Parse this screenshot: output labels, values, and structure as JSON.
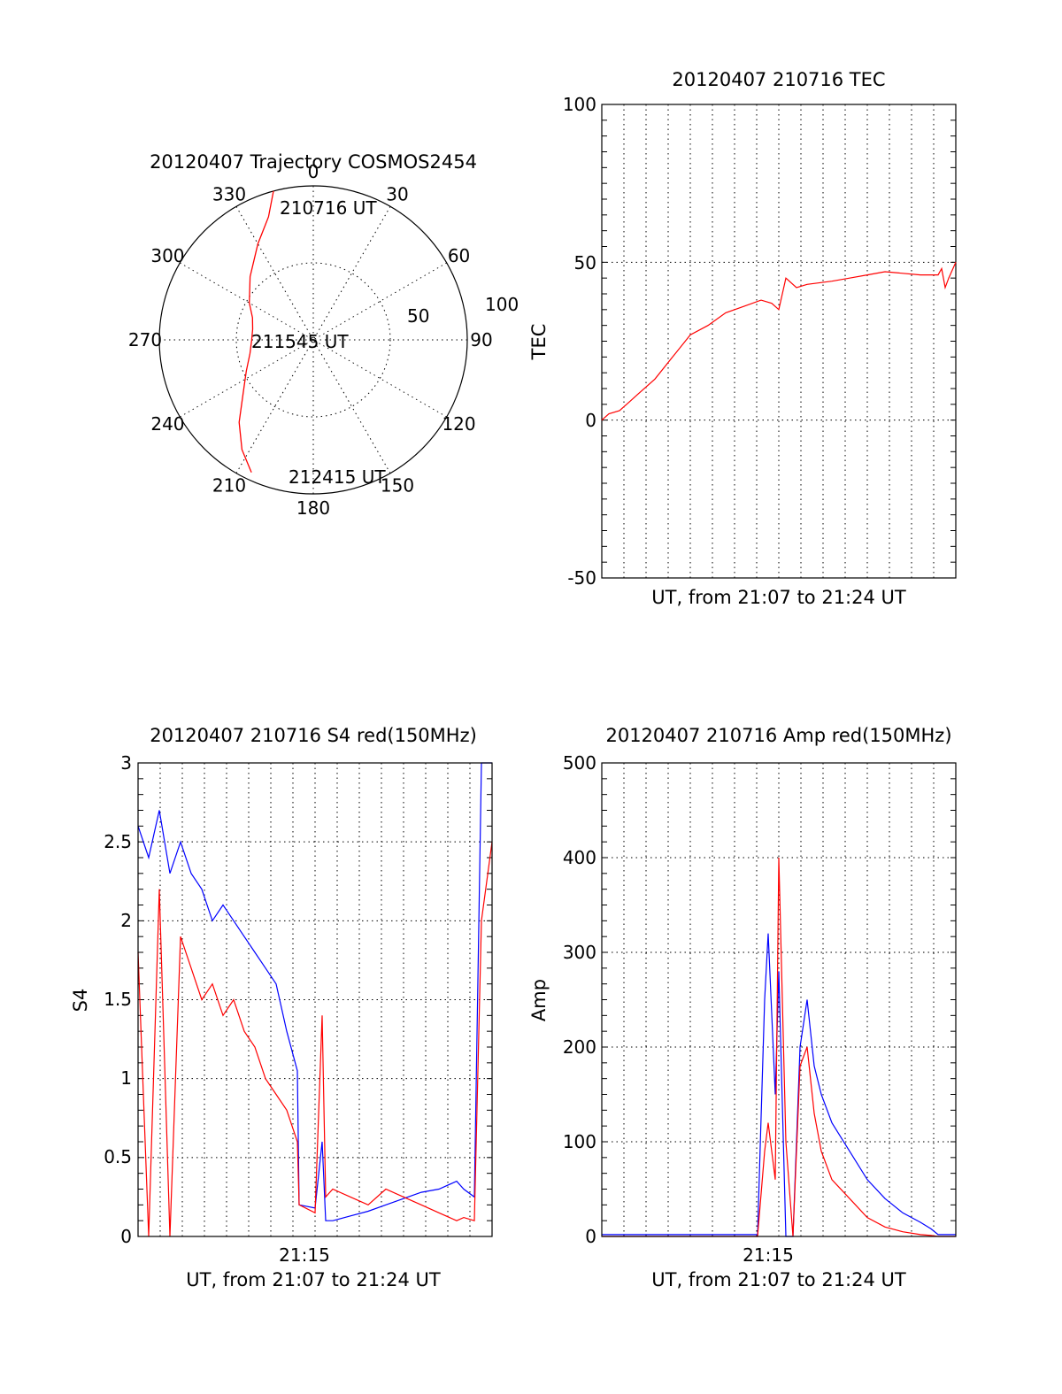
{
  "colors": {
    "red": "#ff0000",
    "blue": "#0000ff",
    "axis": "#000000",
    "background": "#ffffff"
  },
  "chart_data": [
    {
      "id": "trajectory",
      "type": "polar",
      "title": "20120407 Trajectory COSMOS2454",
      "angle_labels": [
        "0",
        "30",
        "60",
        "90",
        "120",
        "150",
        "180",
        "210",
        "240",
        "270",
        "300",
        "330"
      ],
      "radius_labels": [
        "50",
        "100"
      ],
      "rlim": [
        0,
        100
      ],
      "series": [
        {
          "color": "#ff0000",
          "points": [
            [
              345,
              100
            ],
            [
              340,
              85
            ],
            [
              330,
              72
            ],
            [
              315,
              58
            ],
            [
              300,
              48
            ],
            [
              290,
              42
            ],
            [
              280,
              40
            ],
            [
              270,
              40
            ],
            [
              258,
              42
            ],
            [
              245,
              48
            ],
            [
              232,
              58
            ],
            [
              222,
              72
            ],
            [
              213,
              85
            ],
            [
              205,
              95
            ]
          ]
        }
      ],
      "annotations": [
        "210716 UT",
        "211545 UT",
        "212415 UT"
      ]
    },
    {
      "id": "tec",
      "type": "line",
      "title": "20120407 210716 TEC",
      "xlabel": "UT, from 21:07 to 21:24 UT",
      "ylabel": "TEC",
      "ylim": [
        -50,
        100
      ],
      "yticks": [
        "-50",
        "0",
        "50",
        "100"
      ],
      "series": [
        {
          "color": "#ff0000",
          "x": [
            0,
            0.02,
            0.05,
            0.08,
            0.1,
            0.15,
            0.2,
            0.25,
            0.3,
            0.35,
            0.4,
            0.45,
            0.48,
            0.5,
            0.52,
            0.55,
            0.58,
            0.65,
            0.7,
            0.75,
            0.8,
            0.9,
            0.95,
            0.96,
            0.97,
            0.98,
            1.0
          ],
          "y": [
            0,
            2,
            3,
            6,
            8,
            13,
            20,
            27,
            30,
            34,
            36,
            38,
            37,
            35,
            45,
            42,
            43,
            44,
            45,
            46,
            47,
            46,
            46,
            48,
            42,
            45,
            50
          ]
        }
      ]
    },
    {
      "id": "s4",
      "type": "line",
      "title": "20120407 210716 S4 red(150MHz)",
      "xlabel": "UT, from 21:07 to 21:24 UT",
      "xtick": "21:15",
      "ylabel": "S4",
      "ylim": [
        0,
        3
      ],
      "yticks": [
        "0",
        "0.5",
        "1",
        "1.5",
        "2",
        "2.5",
        "3"
      ],
      "series": [
        {
          "color": "#0000ff",
          "x": [
            0.0,
            0.03,
            0.06,
            0.09,
            0.12,
            0.15,
            0.18,
            0.21,
            0.24,
            0.27,
            0.3,
            0.33,
            0.36,
            0.39,
            0.42,
            0.45,
            0.455,
            0.5,
            0.52,
            0.53,
            0.55,
            0.6,
            0.65,
            0.7,
            0.75,
            0.8,
            0.85,
            0.9,
            0.92,
            0.95,
            0.97,
            1.0
          ],
          "y": [
            2.6,
            2.4,
            2.7,
            2.3,
            2.5,
            2.3,
            2.2,
            2.0,
            2.1,
            2.0,
            1.9,
            1.8,
            1.7,
            1.6,
            1.3,
            1.05,
            0.2,
            0.18,
            0.6,
            0.1,
            0.1,
            0.13,
            0.16,
            0.2,
            0.24,
            0.28,
            0.3,
            0.35,
            0.3,
            0.25,
            3.0,
            3.0
          ]
        },
        {
          "color": "#ff0000",
          "x": [
            0.0,
            0.03,
            0.06,
            0.09,
            0.12,
            0.15,
            0.18,
            0.21,
            0.24,
            0.27,
            0.3,
            0.33,
            0.36,
            0.39,
            0.42,
            0.45,
            0.455,
            0.5,
            0.52,
            0.53,
            0.55,
            0.6,
            0.65,
            0.7,
            0.75,
            0.8,
            0.85,
            0.9,
            0.92,
            0.95,
            0.97,
            1.0
          ],
          "y": [
            1.8,
            0.0,
            2.2,
            0.0,
            1.9,
            1.7,
            1.5,
            1.6,
            1.4,
            1.5,
            1.3,
            1.2,
            1.0,
            0.9,
            0.8,
            0.6,
            0.2,
            0.15,
            1.4,
            0.25,
            0.3,
            0.25,
            0.2,
            0.3,
            0.25,
            0.2,
            0.15,
            0.1,
            0.12,
            0.1,
            2.0,
            2.5
          ]
        }
      ]
    },
    {
      "id": "amp",
      "type": "line",
      "title": "20120407 210716 Amp red(150MHz)",
      "xlabel": "UT, from 21:07 to 21:24 UT",
      "xtick": "21:15",
      "ylabel": "Amp",
      "ylim": [
        0,
        500
      ],
      "yticks": [
        "0",
        "100",
        "200",
        "300",
        "400",
        "500"
      ],
      "series": [
        {
          "color": "#0000ff",
          "x": [
            0.0,
            0.2,
            0.44,
            0.46,
            0.47,
            0.49,
            0.5,
            0.52,
            0.54,
            0.56,
            0.58,
            0.6,
            0.62,
            0.65,
            0.7,
            0.75,
            0.8,
            0.85,
            0.9,
            0.93,
            0.95,
            1.0
          ],
          "y": [
            2,
            2,
            2,
            250,
            320,
            150,
            280,
            0,
            0,
            200,
            250,
            180,
            150,
            120,
            90,
            60,
            40,
            25,
            15,
            8,
            2,
            2
          ]
        },
        {
          "color": "#ff0000",
          "x": [
            0.0,
            0.2,
            0.44,
            0.46,
            0.47,
            0.49,
            0.5,
            0.52,
            0.54,
            0.56,
            0.58,
            0.6,
            0.62,
            0.65,
            0.7,
            0.75,
            0.8,
            0.85,
            0.9,
            0.93,
            0.95,
            1.0
          ],
          "y": [
            0,
            0,
            0,
            90,
            120,
            60,
            400,
            100,
            0,
            180,
            200,
            130,
            90,
            60,
            40,
            20,
            10,
            5,
            2,
            1,
            0,
            0
          ]
        }
      ]
    }
  ]
}
